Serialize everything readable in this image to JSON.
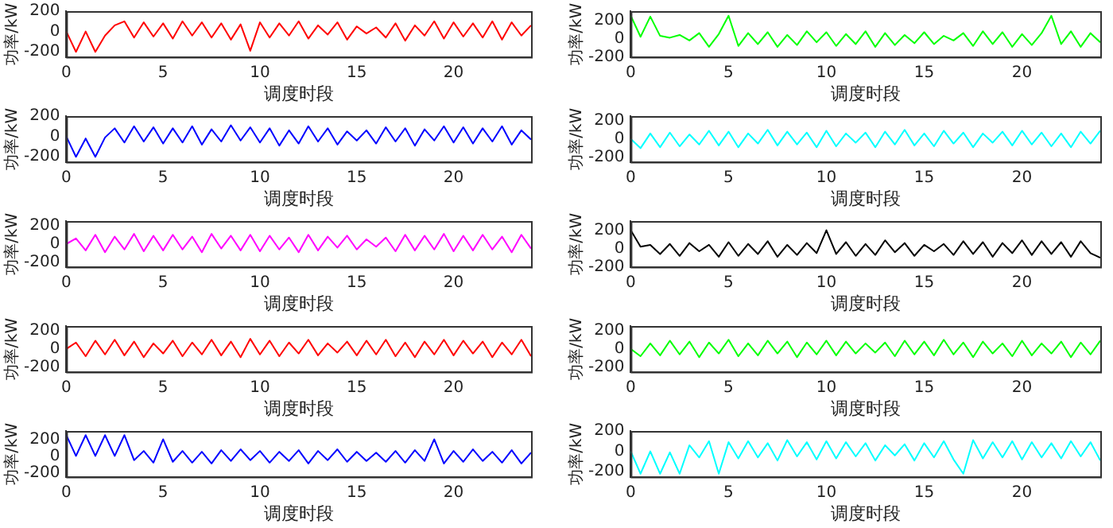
{
  "chart_data": [
    {
      "type": "line",
      "xlabel": "调度时段",
      "ylabel": "功率/kW",
      "xlim": [
        0,
        24
      ],
      "xticks": [
        0,
        5,
        10,
        15,
        20
      ],
      "ylim": [
        -250,
        200
      ],
      "yticks": [
        -200,
        0,
        200
      ],
      "grid": false,
      "legend": false,
      "marker": "none",
      "x": [
        0,
        0.5,
        1,
        1.5,
        2,
        2.5,
        3,
        3.5,
        4,
        4.5,
        5,
        5.5,
        6,
        6.5,
        7,
        7.5,
        8,
        8.5,
        9,
        9.5,
        10,
        10.5,
        11,
        11.5,
        12,
        12.5,
        13,
        13.5,
        14,
        14.5,
        15,
        15.5,
        16,
        16.5,
        17,
        17.5,
        18,
        18.5,
        19,
        19.5,
        20,
        20.5,
        21,
        21.5,
        22,
        22.5,
        23,
        23.5,
        24
      ],
      "series": [
        {
          "color": "#ff0000",
          "values": [
            0,
            -200,
            0,
            -200,
            -40,
            60,
            100,
            -60,
            90,
            -50,
            80,
            -70,
            100,
            -40,
            90,
            -60,
            80,
            -80,
            70,
            -190,
            90,
            -60,
            80,
            -40,
            100,
            -70,
            60,
            -30,
            90,
            -80,
            50,
            -20,
            40,
            -60,
            80,
            -90,
            60,
            -40,
            100,
            -70,
            90,
            -50,
            80,
            -60,
            100,
            -80,
            90,
            -40,
            60
          ]
        }
      ]
    },
    {
      "type": "line",
      "xlabel": "调度时段",
      "ylabel": "功率/kW",
      "xlim": [
        0,
        24
      ],
      "xticks": [
        0,
        5,
        10,
        15,
        20
      ],
      "ylim": [
        -200,
        300
      ],
      "yticks": [
        -200,
        0,
        200
      ],
      "grid": false,
      "legend": false,
      "marker": "none",
      "x": [
        0,
        0.5,
        1,
        1.5,
        2,
        2.5,
        3,
        3.5,
        4,
        4.5,
        5,
        5.5,
        6,
        6.5,
        7,
        7.5,
        8,
        8.5,
        9,
        9.5,
        10,
        10.5,
        11,
        11.5,
        12,
        12.5,
        13,
        13.5,
        14,
        14.5,
        15,
        15.5,
        16,
        16.5,
        17,
        17.5,
        18,
        18.5,
        19,
        19.5,
        20,
        20.5,
        21,
        21.5,
        22,
        22.5,
        23,
        23.5,
        24
      ],
      "series": [
        {
          "color": "#00ff00",
          "values": [
            250,
            20,
            240,
            30,
            10,
            40,
            -20,
            60,
            -90,
            50,
            250,
            -80,
            60,
            -60,
            70,
            -90,
            40,
            -70,
            80,
            -40,
            70,
            -80,
            50,
            -60,
            80,
            -90,
            60,
            -70,
            40,
            -50,
            70,
            -60,
            30,
            -20,
            60,
            -80,
            80,
            -60,
            70,
            -90,
            50,
            -70,
            60,
            250,
            -60,
            80,
            -90,
            60,
            -40
          ]
        }
      ]
    },
    {
      "type": "line",
      "xlabel": "调度时段",
      "ylabel": "功率/kW",
      "xlim": [
        0,
        24
      ],
      "xticks": [
        0,
        5,
        10,
        15,
        20
      ],
      "ylim": [
        -250,
        200
      ],
      "yticks": [
        -200,
        0,
        200
      ],
      "grid": false,
      "legend": false,
      "marker": "none",
      "x": [
        0,
        0.5,
        1,
        1.5,
        2,
        2.5,
        3,
        3.5,
        4,
        4.5,
        5,
        5.5,
        6,
        6.5,
        7,
        7.5,
        8,
        8.5,
        9,
        9.5,
        10,
        10.5,
        11,
        11.5,
        12,
        12.5,
        13,
        13.5,
        14,
        14.5,
        15,
        15.5,
        16,
        16.5,
        17,
        17.5,
        18,
        18.5,
        19,
        19.5,
        20,
        20.5,
        21,
        21.5,
        22,
        22.5,
        23,
        23.5,
        24
      ],
      "series": [
        {
          "color": "#0000ff",
          "values": [
            0,
            -200,
            -20,
            -200,
            -10,
            80,
            -60,
            100,
            -50,
            90,
            -70,
            80,
            -60,
            100,
            -80,
            70,
            -50,
            110,
            -40,
            90,
            -60,
            80,
            -90,
            60,
            -70,
            100,
            -50,
            80,
            -80,
            50,
            -40,
            60,
            -70,
            90,
            -50,
            80,
            -90,
            70,
            -40,
            100,
            -60,
            90,
            -70,
            80,
            -50,
            100,
            -80,
            60,
            -30
          ]
        }
      ]
    },
    {
      "type": "line",
      "xlabel": "调度时段",
      "ylabel": "功率/kW",
      "xlim": [
        0,
        24
      ],
      "xticks": [
        0,
        5,
        10,
        15,
        20
      ],
      "ylim": [
        -250,
        250
      ],
      "yticks": [
        -200,
        0,
        200
      ],
      "grid": false,
      "legend": false,
      "marker": "none",
      "x": [
        0,
        0.5,
        1,
        1.5,
        2,
        2.5,
        3,
        3.5,
        4,
        4.5,
        5,
        5.5,
        6,
        6.5,
        7,
        7.5,
        8,
        8.5,
        9,
        9.5,
        10,
        10.5,
        11,
        11.5,
        12,
        12.5,
        13,
        13.5,
        14,
        14.5,
        15,
        15.5,
        16,
        16.5,
        17,
        17.5,
        18,
        18.5,
        19,
        19.5,
        20,
        20.5,
        21,
        21.5,
        22,
        22.5,
        23,
        23.5,
        24
      ],
      "series": [
        {
          "color": "#00ffff",
          "values": [
            0,
            -100,
            60,
            -90,
            70,
            -80,
            50,
            -60,
            90,
            -70,
            80,
            -90,
            60,
            -50,
            100,
            -70,
            80,
            -60,
            70,
            -90,
            90,
            -80,
            60,
            -40,
            70,
            -90,
            80,
            -60,
            100,
            -70,
            60,
            -80,
            90,
            -50,
            70,
            -90,
            60,
            -40,
            80,
            -70,
            90,
            -60,
            70,
            -80,
            60,
            -90,
            80,
            -50,
            90
          ]
        }
      ]
    },
    {
      "type": "line",
      "xlabel": "调度时段",
      "ylabel": "功率/kW",
      "xlim": [
        0,
        24
      ],
      "xticks": [
        0,
        5,
        10,
        15,
        20
      ],
      "ylim": [
        -250,
        250
      ],
      "yticks": [
        -200,
        0,
        200
      ],
      "grid": false,
      "legend": false,
      "marker": "none",
      "x": [
        0,
        0.5,
        1,
        1.5,
        2,
        2.5,
        3,
        3.5,
        4,
        4.5,
        5,
        5.5,
        6,
        6.5,
        7,
        7.5,
        8,
        8.5,
        9,
        9.5,
        10,
        10.5,
        11,
        11.5,
        12,
        12.5,
        13,
        13.5,
        14,
        14.5,
        15,
        15.5,
        16,
        16.5,
        17,
        17.5,
        18,
        18.5,
        19,
        19.5,
        20,
        20.5,
        21,
        21.5,
        22,
        22.5,
        23,
        23.5,
        24
      ],
      "series": [
        {
          "color": "#ff00ff",
          "values": [
            0,
            60,
            -70,
            100,
            -90,
            80,
            -60,
            110,
            -80,
            90,
            -70,
            100,
            -60,
            80,
            -90,
            110,
            -50,
            90,
            -70,
            100,
            -80,
            90,
            -60,
            70,
            -90,
            100,
            -70,
            80,
            -40,
            90,
            -60,
            50,
            -30,
            70,
            -80,
            100,
            -70,
            90,
            -60,
            110,
            -80,
            90,
            -70,
            100,
            -60,
            80,
            -90,
            100,
            -50
          ]
        }
      ]
    },
    {
      "type": "line",
      "xlabel": "调度时段",
      "ylabel": "功率/kW",
      "xlim": [
        0,
        24
      ],
      "xticks": [
        0,
        5,
        10,
        15,
        20
      ],
      "ylim": [
        -200,
        300
      ],
      "yticks": [
        -200,
        0,
        200
      ],
      "grid": false,
      "legend": false,
      "marker": "none",
      "x": [
        0,
        0.5,
        1,
        1.5,
        2,
        2.5,
        3,
        3.5,
        4,
        4.5,
        5,
        5.5,
        6,
        6.5,
        7,
        7.5,
        8,
        8.5,
        9,
        9.5,
        10,
        10.5,
        11,
        11.5,
        12,
        12.5,
        13,
        13.5,
        14,
        14.5,
        15,
        15.5,
        16,
        16.5,
        17,
        17.5,
        18,
        18.5,
        19,
        19.5,
        20,
        20.5,
        21,
        21.5,
        22,
        22.5,
        23,
        23.5,
        24
      ],
      "series": [
        {
          "color": "#000000",
          "values": [
            200,
            20,
            40,
            -60,
            50,
            -80,
            60,
            -30,
            40,
            -90,
            70,
            -80,
            50,
            -60,
            80,
            -90,
            40,
            -70,
            60,
            -50,
            200,
            -60,
            70,
            -80,
            50,
            -70,
            90,
            -40,
            60,
            -80,
            40,
            -30,
            50,
            -70,
            80,
            -60,
            70,
            -90,
            60,
            -50,
            90,
            -70,
            80,
            -60,
            70,
            -90,
            80,
            -50,
            -100
          ]
        }
      ]
    },
    {
      "type": "line",
      "xlabel": "调度时段",
      "ylabel": "功率/kW",
      "xlim": [
        0,
        24
      ],
      "xticks": [
        0,
        5,
        10,
        15,
        20
      ],
      "ylim": [
        -250,
        250
      ],
      "yticks": [
        -200,
        0,
        200
      ],
      "grid": false,
      "legend": false,
      "marker": "none",
      "x": [
        0,
        0.5,
        1,
        1.5,
        2,
        2.5,
        3,
        3.5,
        4,
        4.5,
        5,
        5.5,
        6,
        6.5,
        7,
        7.5,
        8,
        8.5,
        9,
        9.5,
        10,
        10.5,
        11,
        11.5,
        12,
        12.5,
        13,
        13.5,
        14,
        14.5,
        15,
        15.5,
        16,
        16.5,
        17,
        17.5,
        18,
        18.5,
        19,
        19.5,
        20,
        20.5,
        21,
        21.5,
        22,
        22.5,
        23,
        23.5,
        24
      ],
      "series": [
        {
          "color": "#ff0000",
          "values": [
            0,
            70,
            -80,
            90,
            -60,
            100,
            -70,
            80,
            -90,
            60,
            -50,
            90,
            -80,
            70,
            -60,
            100,
            -70,
            80,
            -90,
            110,
            -60,
            90,
            -80,
            70,
            -50,
            100,
            -70,
            60,
            -40,
            80,
            -70,
            90,
            -60,
            100,
            -80,
            70,
            -90,
            80,
            -60,
            100,
            -70,
            90,
            -50,
            80,
            -90,
            70,
            -60,
            100,
            -80
          ]
        }
      ]
    },
    {
      "type": "line",
      "xlabel": "调度时段",
      "ylabel": "功率/kW",
      "xlim": [
        0,
        24
      ],
      "xticks": [
        0,
        5,
        10,
        15,
        20
      ],
      "ylim": [
        -250,
        250
      ],
      "yticks": [
        -200,
        0,
        200
      ],
      "grid": false,
      "legend": false,
      "marker": "none",
      "x": [
        0,
        0.5,
        1,
        1.5,
        2,
        2.5,
        3,
        3.5,
        4,
        4.5,
        5,
        5.5,
        6,
        6.5,
        7,
        7.5,
        8,
        8.5,
        9,
        9.5,
        10,
        10.5,
        11,
        11.5,
        12,
        12.5,
        13,
        13.5,
        14,
        14.5,
        15,
        15.5,
        16,
        16.5,
        17,
        17.5,
        18,
        18.5,
        19,
        19.5,
        20,
        20.5,
        21,
        21.5,
        22,
        22.5,
        23,
        23.5,
        24
      ],
      "series": [
        {
          "color": "#00ff00",
          "values": [
            0,
            -80,
            60,
            -70,
            90,
            -60,
            80,
            -90,
            70,
            -50,
            100,
            -80,
            60,
            -70,
            90,
            -50,
            80,
            -90,
            70,
            -60,
            90,
            -70,
            80,
            -50,
            60,
            -40,
            70,
            -80,
            90,
            -60,
            80,
            -70,
            100,
            -60,
            70,
            -90,
            80,
            -50,
            60,
            -80,
            90,
            -70,
            60,
            -50,
            80,
            -90,
            70,
            -60,
            90
          ]
        }
      ]
    },
    {
      "type": "line",
      "xlabel": "调度时段",
      "ylabel": "功率/kW",
      "xlim": [
        0,
        24
      ],
      "xticks": [
        0,
        5,
        10,
        15,
        20
      ],
      "ylim": [
        -250,
        300
      ],
      "yticks": [
        -200,
        0,
        200
      ],
      "grid": false,
      "legend": false,
      "marker": "none",
      "x": [
        0,
        0.5,
        1,
        1.5,
        2,
        2.5,
        3,
        3.5,
        4,
        4.5,
        5,
        5.5,
        6,
        6.5,
        7,
        7.5,
        8,
        8.5,
        9,
        9.5,
        10,
        10.5,
        11,
        11.5,
        12,
        12.5,
        13,
        13.5,
        14,
        14.5,
        15,
        15.5,
        16,
        16.5,
        17,
        17.5,
        18,
        18.5,
        19,
        19.5,
        20,
        20.5,
        21,
        21.5,
        22,
        22.5,
        23,
        23.5,
        24
      ],
      "series": [
        {
          "color": "#0000ff",
          "values": [
            250,
            0,
            250,
            0,
            250,
            0,
            250,
            -50,
            60,
            -80,
            200,
            -70,
            60,
            -80,
            50,
            -90,
            70,
            -60,
            80,
            -50,
            60,
            -80,
            50,
            -60,
            70,
            -90,
            60,
            -50,
            80,
            -70,
            50,
            -60,
            40,
            -70,
            60,
            -80,
            70,
            -60,
            200,
            -90,
            60,
            -70,
            80,
            -60,
            50,
            -80,
            70,
            -90,
            40
          ]
        }
      ]
    },
    {
      "type": "line",
      "xlabel": "调度时段",
      "ylabel": "功率/kW",
      "xlim": [
        0,
        24
      ],
      "xticks": [
        0,
        5,
        10,
        15,
        20
      ],
      "ylim": [
        -250,
        200
      ],
      "yticks": [
        -200,
        0,
        200
      ],
      "grid": false,
      "legend": false,
      "marker": "none",
      "x": [
        0,
        0.5,
        1,
        1.5,
        2,
        2.5,
        3,
        3.5,
        4,
        4.5,
        5,
        5.5,
        6,
        6.5,
        7,
        7.5,
        8,
        8.5,
        9,
        9.5,
        10,
        10.5,
        11,
        11.5,
        12,
        12.5,
        13,
        13.5,
        14,
        14.5,
        15,
        15.5,
        16,
        16.5,
        17,
        17.5,
        18,
        18.5,
        19,
        19.5,
        20,
        20.5,
        21,
        21.5,
        22,
        22.5,
        23,
        23.5,
        24
      ],
      "series": [
        {
          "color": "#00ffff",
          "values": [
            0,
            -220,
            0,
            -220,
            -10,
            -220,
            60,
            -60,
            100,
            -220,
            90,
            -70,
            100,
            -60,
            80,
            -90,
            110,
            -50,
            90,
            -80,
            100,
            -70,
            90,
            -50,
            80,
            -90,
            60,
            -40,
            70,
            -90,
            80,
            -60,
            100,
            -80,
            -220,
            110,
            -70,
            90,
            -60,
            100,
            -80,
            90,
            -60,
            80,
            -70,
            100,
            -50,
            90,
            -90
          ]
        }
      ]
    }
  ]
}
